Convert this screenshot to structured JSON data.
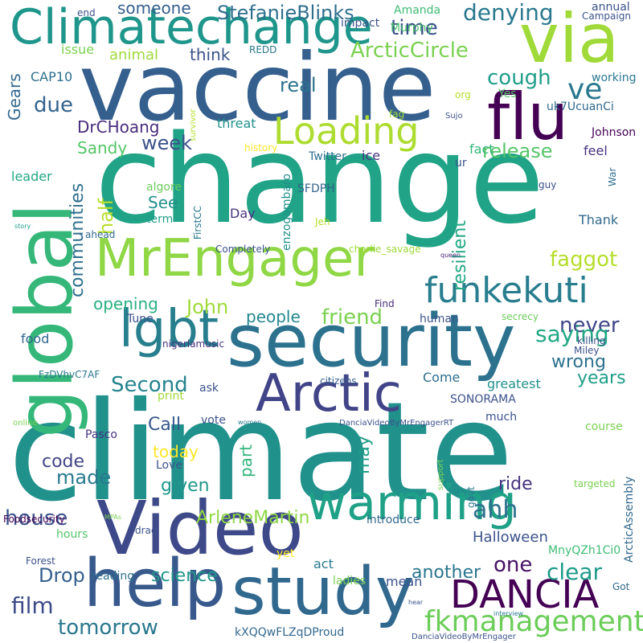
{
  "words": [
    {
      "text": "climate",
      "color": "#21918c"
    },
    {
      "text": "change",
      "color": "#20a386"
    },
    {
      "text": "vaccine",
      "color": "#355f8d"
    },
    {
      "text": "global",
      "color": "#35b779"
    },
    {
      "text": "security",
      "color": "#2c728e"
    },
    {
      "text": "Video",
      "color": "#3e4989"
    },
    {
      "text": "study",
      "color": "#31688e"
    },
    {
      "text": "help",
      "color": "#38598c"
    },
    {
      "text": "flu",
      "color": "#440154"
    },
    {
      "text": "Climatechange",
      "color": "#1f968b"
    },
    {
      "text": "via",
      "color": "#a0da39"
    },
    {
      "text": "Arctic",
      "color": "#414487"
    },
    {
      "text": "MrEngager",
      "color": "#8fd744"
    },
    {
      "text": "lgbt",
      "color": "#277f8e"
    },
    {
      "text": "warming",
      "color": "#1fa188"
    },
    {
      "text": "DANCIA",
      "color": "#440154"
    },
    {
      "text": "Loading",
      "color": "#addc30"
    },
    {
      "text": "funkekuti",
      "color": "#287d8e"
    },
    {
      "text": "fkmanagement",
      "color": "#6ccd5a"
    },
    {
      "text": "ArcticCircle",
      "color": "#7ad151"
    },
    {
      "text": "denying",
      "color": "#2a788e"
    },
    {
      "text": "StefanieBlinks",
      "color": "#2e6f8e"
    },
    {
      "text": "someone",
      "color": "#355e8d"
    },
    {
      "text": "time",
      "color": "#3b528b"
    },
    {
      "text": "cough",
      "color": "#1f9e89"
    },
    {
      "text": "ve",
      "color": "#2a788e"
    },
    {
      "text": "think",
      "color": "#3b528b"
    },
    {
      "text": "animal",
      "color": "#9fda3a"
    },
    {
      "text": "real",
      "color": "#2c728e"
    },
    {
      "text": "due",
      "color": "#33638d"
    },
    {
      "text": "DrCHoang",
      "color": "#472d7b"
    },
    {
      "text": "week",
      "color": "#3b528b"
    },
    {
      "text": "Sandy",
      "color": "#54c568"
    },
    {
      "text": "release",
      "color": "#54c568"
    },
    {
      "text": "communities",
      "color": "#2e6f8e"
    },
    {
      "text": "half",
      "color": "#b8de29"
    },
    {
      "text": "See",
      "color": "#21918c"
    },
    {
      "text": "resilient",
      "color": "#22a884"
    },
    {
      "text": "faggot",
      "color": "#b5de2b"
    },
    {
      "text": "opening",
      "color": "#29af7f"
    },
    {
      "text": "John",
      "color": "#a0da39"
    },
    {
      "text": "people",
      "color": "#24868e"
    },
    {
      "text": "friend",
      "color": "#7ad151"
    },
    {
      "text": "never",
      "color": "#3f4788"
    },
    {
      "text": "wrong",
      "color": "#2c728e"
    },
    {
      "text": "saying",
      "color": "#22a884"
    },
    {
      "text": "Second",
      "color": "#25848e"
    },
    {
      "text": "Call",
      "color": "#38588c"
    },
    {
      "text": "today",
      "color": "#fde725"
    },
    {
      "text": "code",
      "color": "#414487"
    },
    {
      "text": "made",
      "color": "#29798e"
    },
    {
      "text": "given",
      "color": "#1f988b"
    },
    {
      "text": "may",
      "color": "#1f9f88"
    },
    {
      "text": "part",
      "color": "#31b57b"
    },
    {
      "text": "house",
      "color": "#3b528b"
    },
    {
      "text": "ahh",
      "color": "#2d708e"
    },
    {
      "text": "one",
      "color": "#471164"
    },
    {
      "text": "clear",
      "color": "#1e9c89"
    },
    {
      "text": "Drop",
      "color": "#355f8d"
    },
    {
      "text": "film",
      "color": "#3e4a89"
    },
    {
      "text": "tomorrow",
      "color": "#2a788e"
    },
    {
      "text": "science",
      "color": "#1f978b"
    },
    {
      "text": "another",
      "color": "#2a768e"
    },
    {
      "text": "ArleneMartin",
      "color": "#8fd744"
    },
    {
      "text": "Halloween",
      "color": "#3b528b"
    },
    {
      "text": "ride",
      "color": "#46337f"
    },
    {
      "text": "years",
      "color": "#1f9e89"
    },
    {
      "text": "Gears",
      "color": "#31688e"
    },
    {
      "text": "CAP10",
      "color": "#2e6f8e"
    },
    {
      "text": "issue",
      "color": "#7ad151"
    },
    {
      "text": "REDD",
      "color": "#2a788e"
    },
    {
      "text": "Amanda",
      "color": "#3dbc74"
    },
    {
      "text": "Murphy",
      "color": "#4ac16d"
    },
    {
      "text": "impact",
      "color": "#3b528b"
    },
    {
      "text": "end",
      "color": "#3b528b"
    },
    {
      "text": "annual",
      "color": "#3b528b"
    },
    {
      "text": "Campaign",
      "color": "#3b528b"
    },
    {
      "text": "working",
      "color": "#2a788e"
    },
    {
      "text": "uk7UcuanCi",
      "color": "#31688e"
    },
    {
      "text": "Yes",
      "color": "#54c568"
    },
    {
      "text": "org",
      "color": "#b5de2b"
    },
    {
      "text": "threat",
      "color": "#21918c"
    },
    {
      "text": "survivor",
      "color": "#b5de2b"
    },
    {
      "text": "fag",
      "color": "#a0da39"
    },
    {
      "text": "Sujo",
      "color": "#3b528b"
    },
    {
      "text": "Johnson",
      "color": "#440154"
    },
    {
      "text": "history",
      "color": "#fde725"
    },
    {
      "text": "Twitter",
      "color": "#2e6f8e"
    },
    {
      "text": "ice",
      "color": "#46337f"
    },
    {
      "text": "fact",
      "color": "#35b779"
    },
    {
      "text": "ur",
      "color": "#3b528b"
    },
    {
      "text": "feel",
      "color": "#46337f"
    },
    {
      "text": "leader",
      "color": "#22a884"
    },
    {
      "text": "algore",
      "color": "#6ccd5a"
    },
    {
      "text": "SFDPH",
      "color": "#33638d"
    },
    {
      "text": "guy",
      "color": "#3b528b"
    },
    {
      "text": "War",
      "color": "#2e6f8e"
    },
    {
      "text": "term",
      "color": "#1f9e89"
    },
    {
      "text": "enzogambaro",
      "color": "#21918c"
    },
    {
      "text": "FirstCC",
      "color": "#2a788e"
    },
    {
      "text": "Day",
      "color": "#46337f"
    },
    {
      "text": "Jeh",
      "color": "#b5de2b"
    },
    {
      "text": "Thank",
      "color": "#31688e"
    },
    {
      "text": "story",
      "color": "#1f9e89"
    },
    {
      "text": "ahead",
      "color": "#31688e"
    },
    {
      "text": "Completely",
      "color": "#3b528b"
    },
    {
      "text": "charlie_savage",
      "color": "#a0da39"
    },
    {
      "text": "queen",
      "color": "#482878"
    },
    {
      "text": "Find",
      "color": "#472d7b"
    },
    {
      "text": "secrecy",
      "color": "#6ccd5a"
    },
    {
      "text": "food",
      "color": "#31688e"
    },
    {
      "text": "Tune",
      "color": "#3b528b"
    },
    {
      "text": "human",
      "color": "#3b528b"
    },
    {
      "text": "killing",
      "color": "#3b528b"
    },
    {
      "text": "Miley",
      "color": "#3b528b"
    },
    {
      "text": "nigeriamusic",
      "color": "#46337f"
    },
    {
      "text": "FzDVhvC7AF",
      "color": "#2a788e"
    },
    {
      "text": "citizens",
      "color": "#355e8d"
    },
    {
      "text": "Come",
      "color": "#2e6f8e"
    },
    {
      "text": "ask",
      "color": "#3b528b"
    },
    {
      "text": "print",
      "color": "#a0da39"
    },
    {
      "text": "greatest",
      "color": "#21918c"
    },
    {
      "text": "SONORAMA",
      "color": "#3b528b"
    },
    {
      "text": "online",
      "color": "#7ad151"
    },
    {
      "text": "vote",
      "color": "#3b528b"
    },
    {
      "text": "women",
      "color": "#2a788e"
    },
    {
      "text": "DanciaVideoByMrEngagerRT",
      "color": "#3b528b"
    },
    {
      "text": "much",
      "color": "#3b528b"
    },
    {
      "text": "course",
      "color": "#7ad151"
    },
    {
      "text": "Pasco",
      "color": "#46337f"
    },
    {
      "text": "Love",
      "color": "#3b528b"
    },
    {
      "text": "govt",
      "color": "#2a788e"
    },
    {
      "text": "ArcticAssembly",
      "color": "#31688e"
    },
    {
      "text": "support",
      "color": "#7ad151"
    },
    {
      "text": "targeted",
      "color": "#7ad151"
    },
    {
      "text": "Foodsecurity",
      "color": "#440154"
    },
    {
      "text": "MPAs",
      "color": "#7ad151"
    },
    {
      "text": "introduce",
      "color": "#31688e"
    },
    {
      "text": "hours",
      "color": "#54c568"
    },
    {
      "text": "drag",
      "color": "#3b528b"
    },
    {
      "text": "MnyQZh1Ci0",
      "color": "#3dbc74"
    },
    {
      "text": "Got",
      "color": "#31688e"
    },
    {
      "text": "Forest",
      "color": "#3b528b"
    },
    {
      "text": "yet",
      "color": "#fde725"
    },
    {
      "text": "reading",
      "color": "#2e6f8e"
    },
    {
      "text": "act",
      "color": "#2a788e"
    },
    {
      "text": "mean",
      "color": "#3b528b"
    },
    {
      "text": "ladies",
      "color": "#7ad151"
    },
    {
      "text": "hear",
      "color": "#3b528b"
    },
    {
      "text": "interview",
      "color": "#2a788e"
    },
    {
      "text": "kXQQwFLZqDProud",
      "color": "#31688e"
    },
    {
      "text": "DanciaVideoByMrEngager",
      "color": "#3b528b"
    }
  ]
}
